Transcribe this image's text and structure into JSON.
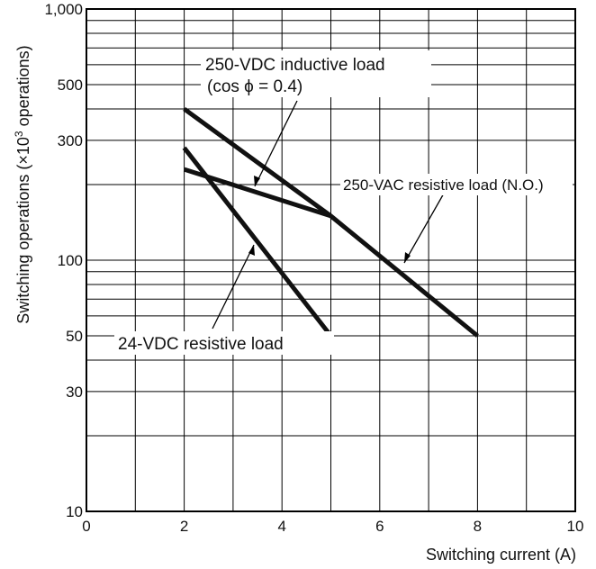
{
  "chart_data": {
    "type": "line",
    "xlabel": "Switching current (A)",
    "ylabel": "Switching operations (×10³ operations)",
    "ylabel_parts": {
      "prefix": "Switching operations (×10",
      "superscript": "3",
      "suffix": " operations)"
    },
    "xlim": [
      0,
      10
    ],
    "ylim": [
      10,
      1000
    ],
    "y_scale": "log",
    "grid": true,
    "x_ticks": [
      "0",
      "2",
      "4",
      "6",
      "8",
      "10"
    ],
    "y_tick_labels": [
      {
        "value": 1000,
        "label": "1,000"
      },
      {
        "value": 500,
        "label": "500"
      },
      {
        "value": 300,
        "label": "300"
      },
      {
        "value": 100,
        "label": "100"
      },
      {
        "value": 50,
        "label": "50"
      },
      {
        "value": 30,
        "label": "30"
      },
      {
        "value": 10,
        "label": "10"
      }
    ],
    "series": [
      {
        "name": "250-VDC inductive load (cos ϕ = 0.4)",
        "x": [
          2,
          5
        ],
        "y": [
          230,
          150
        ]
      },
      {
        "name": "250-VAC resistive load (N.O.)",
        "x": [
          2,
          5,
          8
        ],
        "y": [
          400,
          150,
          50
        ]
      },
      {
        "name": "24-VDC resistive load",
        "x": [
          2,
          5
        ],
        "y": [
          280,
          50
        ]
      }
    ],
    "annotations": [
      {
        "lines": [
          "250-VDC inductive load",
          "(cos ϕ = 0.4)"
        ],
        "series": 0
      },
      {
        "lines": [
          "250-VAC resistive load (N.O.)"
        ],
        "series": 1
      },
      {
        "lines": [
          "24-VDC resistive load"
        ],
        "series": 2
      }
    ]
  }
}
